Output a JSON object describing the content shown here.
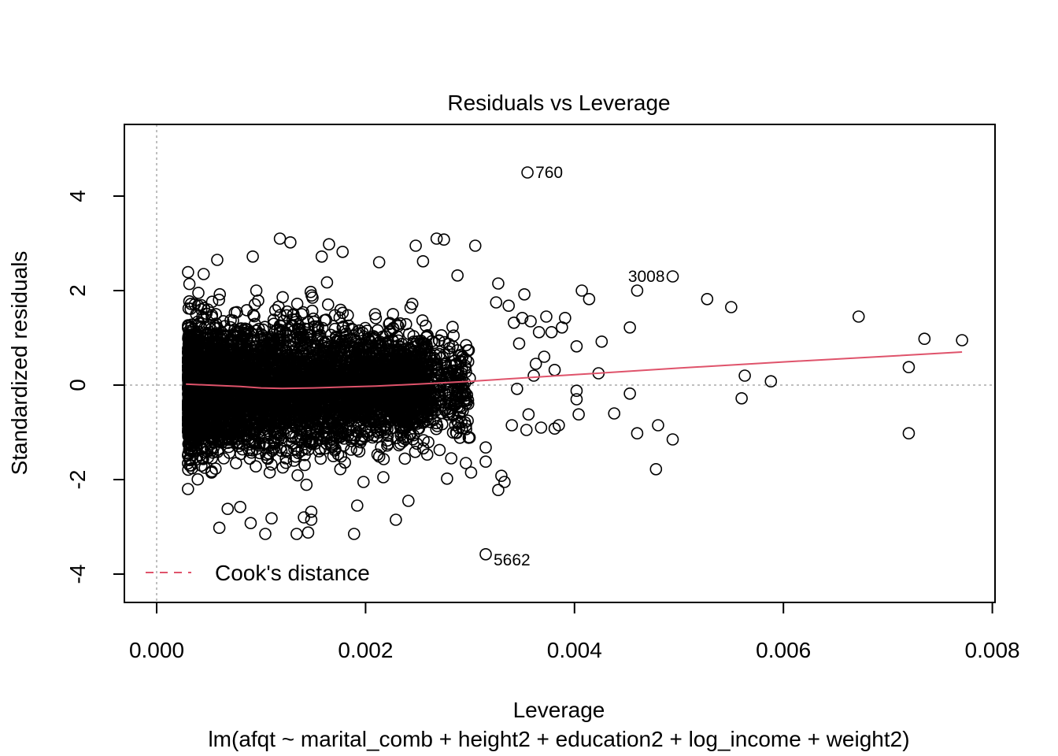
{
  "chart_data": {
    "type": "scatter",
    "title": "Residuals vs Leverage",
    "xlabel": "Leverage",
    "ylabel": "Standardized residuals",
    "subtitle": "lm(afqt ~ marital_comb + height2 + education2 + log_income + weight2)",
    "xlim": [
      -0.0003,
      0.008
    ],
    "ylim": [
      -4.6,
      5.5
    ],
    "x_ticks": [
      0.0,
      0.002,
      0.004,
      0.006,
      0.008
    ],
    "x_tick_labels": [
      "0.000",
      "0.002",
      "0.004",
      "0.006",
      "0.008"
    ],
    "y_ticks": [
      -4,
      -2,
      0,
      2,
      4
    ],
    "y_tick_labels": [
      "-4",
      "-2",
      "0",
      "2",
      "4"
    ],
    "reference_lines": {
      "x": 0,
      "y": 0,
      "style": "dotted",
      "color": "#aaaaaa"
    },
    "grid": false,
    "legend": {
      "position": "bottom-left",
      "entries": [
        {
          "label": "Cook's distance",
          "color": "#DF536B",
          "style": "dashed"
        }
      ]
    },
    "dense_cloud": {
      "x_range": [
        0.0003,
        0.0026
      ],
      "y_range": [
        -3.0,
        2.6
      ],
      "approx_points": 5000
    },
    "points": [
      [
        0.00355,
        4.5
      ],
      [
        0.00494,
        2.3
      ],
      [
        0.0046,
        2.0
      ],
      [
        0.00315,
        -3.58
      ],
      [
        0.00672,
        1.45
      ],
      [
        0.00735,
        0.98
      ],
      [
        0.00771,
        0.95
      ],
      [
        0.0072,
        0.38
      ],
      [
        0.0072,
        -1.02
      ],
      [
        0.00588,
        0.08
      ],
      [
        0.00563,
        0.2
      ],
      [
        0.0056,
        -0.28
      ],
      [
        0.0055,
        1.65
      ],
      [
        0.00527,
        1.82
      ],
      [
        0.00494,
        -1.15
      ],
      [
        0.0048,
        -0.85
      ],
      [
        0.00478,
        -1.78
      ],
      [
        0.0046,
        -1.02
      ],
      [
        0.00453,
        1.22
      ],
      [
        0.00453,
        -0.18
      ],
      [
        0.00438,
        -0.6
      ],
      [
        0.00426,
        0.92
      ],
      [
        0.00423,
        0.25
      ],
      [
        0.00414,
        1.82
      ],
      [
        0.00407,
        2.0
      ],
      [
        0.00402,
        0.82
      ],
      [
        0.00402,
        -0.12
      ],
      [
        0.00402,
        -0.3
      ],
      [
        0.00404,
        -0.62
      ],
      [
        0.00391,
        1.42
      ],
      [
        0.00388,
        1.22
      ],
      [
        0.00385,
        -0.85
      ],
      [
        0.00381,
        0.32
      ],
      [
        0.00381,
        -0.92
      ],
      [
        0.00378,
        1.12
      ],
      [
        0.00373,
        1.45
      ],
      [
        0.00371,
        0.6
      ],
      [
        0.00368,
        -0.9
      ],
      [
        0.00366,
        1.12
      ],
      [
        0.00363,
        0.45
      ],
      [
        0.00361,
        0.2
      ],
      [
        0.00358,
        1.35
      ],
      [
        0.00356,
        -0.62
      ],
      [
        0.00354,
        -0.95
      ],
      [
        0.00352,
        1.92
      ],
      [
        0.0035,
        1.42
      ],
      [
        0.00347,
        0.88
      ],
      [
        0.00345,
        -0.08
      ],
      [
        0.00342,
        1.32
      ],
      [
        0.0034,
        -0.85
      ],
      [
        0.00337,
        1.68
      ],
      [
        0.00333,
        -2.05
      ],
      [
        0.0033,
        -1.92
      ],
      [
        0.00327,
        -2.22
      ],
      [
        0.00327,
        2.15
      ],
      [
        0.00325,
        1.75
      ],
      [
        0.00315,
        -1.32
      ],
      [
        0.00315,
        -1.62
      ],
      [
        0.00305,
        2.95
      ],
      [
        0.00301,
        -1.85
      ],
      [
        0.00296,
        -1.65
      ],
      [
        0.00288,
        2.32
      ],
      [
        0.00282,
        -1.55
      ],
      [
        0.00278,
        -1.98
      ],
      [
        0.00275,
        3.08
      ],
      [
        0.00268,
        3.1
      ],
      [
        0.00255,
        2.62
      ],
      [
        0.00248,
        2.95
      ],
      [
        0.00241,
        -2.45
      ],
      [
        0.00229,
        -2.85
      ],
      [
        0.00217,
        -1.95
      ],
      [
        0.00213,
        2.6
      ],
      [
        0.00198,
        -2.05
      ],
      [
        0.00192,
        -2.55
      ],
      [
        0.00189,
        -3.15
      ],
      [
        0.00178,
        2.82
      ],
      [
        0.00165,
        2.98
      ],
      [
        0.00158,
        2.72
      ],
      [
        0.00148,
        -2.85
      ],
      [
        0.00148,
        -2.68
      ],
      [
        0.00145,
        -3.12
      ],
      [
        0.00141,
        -2.8
      ],
      [
        0.00134,
        -3.15
      ],
      [
        0.00128,
        3.02
      ],
      [
        0.00118,
        3.1
      ],
      [
        0.0011,
        -2.82
      ],
      [
        0.00104,
        -3.15
      ],
      [
        0.00092,
        2.72
      ],
      [
        0.0009,
        -2.92
      ],
      [
        0.0008,
        -2.58
      ],
      [
        0.00068,
        -2.62
      ],
      [
        0.0006,
        -3.02
      ],
      [
        0.00058,
        2.65
      ],
      [
        0.00045,
        2.35
      ],
      [
        0.0003,
        -2.2
      ]
    ],
    "labeled_points": [
      {
        "label": "760",
        "x": 0.00355,
        "y": 4.5,
        "side": "right"
      },
      {
        "label": "3008",
        "x": 0.00494,
        "y": 2.3,
        "side": "left"
      },
      {
        "label": "5662",
        "x": 0.00315,
        "y": -3.58,
        "side": "right-below"
      }
    ],
    "smooth_line": {
      "color": "#DF536B",
      "x": [
        0.00028,
        0.0005,
        0.0008,
        0.001,
        0.0012,
        0.0015,
        0.0018,
        0.0021,
        0.0025,
        0.003,
        0.0035,
        0.004,
        0.005,
        0.006,
        0.007,
        0.00771
      ],
      "y": [
        0.02,
        0.0,
        -0.03,
        -0.06,
        -0.07,
        -0.06,
        -0.04,
        -0.02,
        0.02,
        0.08,
        0.15,
        0.22,
        0.36,
        0.49,
        0.61,
        0.7
      ]
    }
  }
}
